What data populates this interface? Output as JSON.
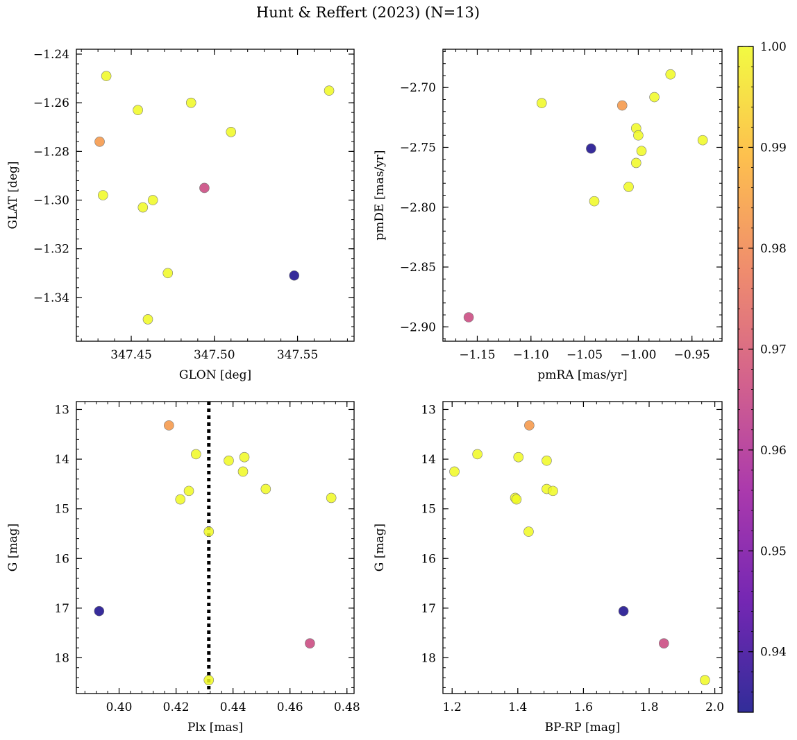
{
  "figure": {
    "title": "Hunt & Reffert (2023) (N=13)"
  },
  "colorbar": {
    "ticks": [
      0.94,
      0.95,
      0.96,
      0.97,
      0.98,
      0.99,
      1.0
    ],
    "tick_labels": [
      "0.94",
      "0.95",
      "0.96",
      "0.97",
      "0.98",
      "0.99",
      "1.00"
    ],
    "range": [
      0.934,
      1.0
    ],
    "colormap": "plasma",
    "colors": [
      "#0d0887",
      "#5c01a6",
      "#9c179e",
      "#cc4778",
      "#ed7953",
      "#fdb42f",
      "#f0f921"
    ]
  },
  "chart_data": [
    {
      "type": "scatter",
      "xlabel": "GLON [deg]",
      "ylabel": "GLAT [deg]",
      "xlim": [
        347.417,
        347.584
      ],
      "ylim": [
        -1.358,
        -1.238
      ],
      "xticks": [
        347.45,
        347.5,
        347.55
      ],
      "xtick_labels": [
        "347.45",
        "347.50",
        "347.55"
      ],
      "yticks": [
        -1.24,
        -1.26,
        -1.28,
        -1.3,
        -1.32,
        -1.34
      ],
      "ytick_labels": [
        "−1.24",
        "−1.26",
        "−1.28",
        "−1.30",
        "−1.32",
        "−1.34"
      ],
      "points": [
        {
          "x": 347.435,
          "y": -1.249,
          "c": 1.0
        },
        {
          "x": 347.454,
          "y": -1.263,
          "c": 1.0
        },
        {
          "x": 347.486,
          "y": -1.26,
          "c": 1.0
        },
        {
          "x": 347.569,
          "y": -1.255,
          "c": 1.0
        },
        {
          "x": 347.431,
          "y": -1.276,
          "c": 0.983
        },
        {
          "x": 347.51,
          "y": -1.272,
          "c": 1.0
        },
        {
          "x": 347.433,
          "y": -1.298,
          "c": 1.0
        },
        {
          "x": 347.457,
          "y": -1.303,
          "c": 1.0
        },
        {
          "x": 347.463,
          "y": -1.3,
          "c": 1.0
        },
        {
          "x": 347.494,
          "y": -1.295,
          "c": 0.966
        },
        {
          "x": 347.472,
          "y": -1.33,
          "c": 1.0
        },
        {
          "x": 347.548,
          "y": -1.331,
          "c": 0.935
        },
        {
          "x": 347.46,
          "y": -1.349,
          "c": 1.0
        }
      ]
    },
    {
      "type": "scatter",
      "xlabel": "pmRA [mas/yr]",
      "ylabel": "pmDE [mas/yr]",
      "xlim": [
        -1.182,
        -0.922
      ],
      "ylim": [
        -2.912,
        -2.668
      ],
      "xticks": [
        -1.15,
        -1.1,
        -1.05,
        -1.0,
        -0.95
      ],
      "xtick_labels": [
        "−1.15",
        "−1.10",
        "−1.05",
        "−1.00",
        "−0.95"
      ],
      "yticks": [
        -2.7,
        -2.75,
        -2.8,
        -2.85,
        -2.9
      ],
      "ytick_labels": [
        "−2.70",
        "−2.75",
        "−2.80",
        "−2.85",
        "−2.90"
      ],
      "points": [
        {
          "x": -0.97,
          "y": -2.689,
          "c": 1.0
        },
        {
          "x": -1.09,
          "y": -2.713,
          "c": 1.0
        },
        {
          "x": -0.985,
          "y": -2.708,
          "c": 1.0
        },
        {
          "x": -1.015,
          "y": -2.715,
          "c": 0.983
        },
        {
          "x": -1.002,
          "y": -2.734,
          "c": 1.0
        },
        {
          "x": -1.0,
          "y": -2.74,
          "c": 1.0
        },
        {
          "x": -0.94,
          "y": -2.744,
          "c": 1.0
        },
        {
          "x": -1.044,
          "y": -2.751,
          "c": 0.935
        },
        {
          "x": -0.997,
          "y": -2.753,
          "c": 1.0
        },
        {
          "x": -1.002,
          "y": -2.763,
          "c": 1.0
        },
        {
          "x": -1.009,
          "y": -2.783,
          "c": 1.0
        },
        {
          "x": -1.041,
          "y": -2.795,
          "c": 1.0
        },
        {
          "x": -1.158,
          "y": -2.892,
          "c": 0.966
        }
      ]
    },
    {
      "type": "scatter",
      "xlabel": "Plx [mas]",
      "ylabel": "G [mag]",
      "xlim": [
        0.385,
        0.4825
      ],
      "ylim": [
        18.72,
        12.84
      ],
      "y_inverted": true,
      "xticks": [
        0.4,
        0.42,
        0.44,
        0.46,
        0.48
      ],
      "xtick_labels": [
        "0.40",
        "0.42",
        "0.44",
        "0.46",
        "0.48"
      ],
      "yticks": [
        13,
        14,
        15,
        16,
        17,
        18
      ],
      "ytick_labels": [
        "13",
        "14",
        "15",
        "16",
        "17",
        "18"
      ],
      "vline": {
        "x": 0.4315,
        "style": "dotted"
      },
      "points": [
        {
          "x": 0.4175,
          "y": 13.32,
          "c": 0.983
        },
        {
          "x": 0.427,
          "y": 13.9,
          "c": 1.0
        },
        {
          "x": 0.4385,
          "y": 14.03,
          "c": 1.0
        },
        {
          "x": 0.444,
          "y": 13.96,
          "c": 1.0
        },
        {
          "x": 0.4435,
          "y": 14.25,
          "c": 1.0
        },
        {
          "x": 0.4245,
          "y": 14.64,
          "c": 1.0
        },
        {
          "x": 0.4215,
          "y": 14.81,
          "c": 1.0
        },
        {
          "x": 0.4515,
          "y": 14.6,
          "c": 1.0
        },
        {
          "x": 0.4745,
          "y": 14.78,
          "c": 1.0
        },
        {
          "x": 0.4315,
          "y": 15.46,
          "c": 1.0
        },
        {
          "x": 0.393,
          "y": 17.06,
          "c": 0.935
        },
        {
          "x": 0.467,
          "y": 17.71,
          "c": 0.966
        },
        {
          "x": 0.4315,
          "y": 18.45,
          "c": 1.0
        }
      ]
    },
    {
      "type": "scatter",
      "xlabel": "BP-RP [mag]",
      "ylabel": "G [mag]",
      "xlim": [
        1.172,
        2.022
      ],
      "ylim": [
        18.72,
        12.84
      ],
      "y_inverted": true,
      "xticks": [
        1.2,
        1.4,
        1.6,
        1.8,
        2.0
      ],
      "xtick_labels": [
        "1.2",
        "1.4",
        "1.6",
        "1.8",
        "2.0"
      ],
      "yticks": [
        13,
        14,
        15,
        16,
        17,
        18
      ],
      "ytick_labels": [
        "13",
        "14",
        "15",
        "16",
        "17",
        "18"
      ],
      "points": [
        {
          "x": 1.435,
          "y": 13.32,
          "c": 0.983
        },
        {
          "x": 1.277,
          "y": 13.9,
          "c": 1.0
        },
        {
          "x": 1.402,
          "y": 13.96,
          "c": 1.0
        },
        {
          "x": 1.488,
          "y": 14.03,
          "c": 1.0
        },
        {
          "x": 1.207,
          "y": 14.25,
          "c": 1.0
        },
        {
          "x": 1.488,
          "y": 14.6,
          "c": 1.0
        },
        {
          "x": 1.507,
          "y": 14.64,
          "c": 1.0
        },
        {
          "x": 1.392,
          "y": 14.78,
          "c": 1.0
        },
        {
          "x": 1.396,
          "y": 14.81,
          "c": 1.0
        },
        {
          "x": 1.433,
          "y": 15.46,
          "c": 1.0
        },
        {
          "x": 1.722,
          "y": 17.06,
          "c": 0.935
        },
        {
          "x": 1.845,
          "y": 17.71,
          "c": 0.966
        },
        {
          "x": 1.97,
          "y": 18.45,
          "c": 1.0
        }
      ]
    }
  ]
}
